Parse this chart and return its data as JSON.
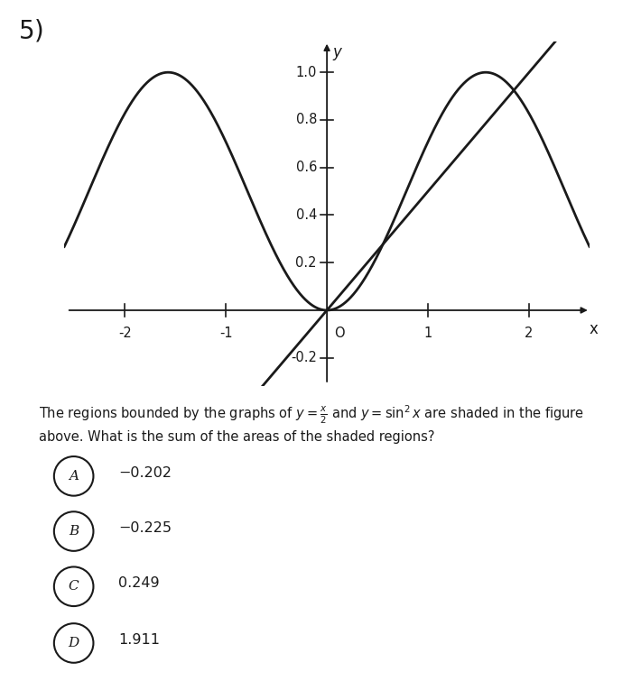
{
  "xmin": -2.6,
  "xmax": 2.6,
  "ymin": -0.32,
  "ymax": 1.13,
  "xticks": [
    -2,
    -1,
    1,
    2
  ],
  "yticks": [
    -0.2,
    0.2,
    0.4,
    0.6,
    0.8,
    1.0
  ],
  "xlabel": "x",
  "ylabel": "y",
  "line_color": "#1a1a1a",
  "line_width": 2.0,
  "background_color": "#ffffff",
  "choices": [
    {
      "label": "A",
      "value": "−0.202"
    },
    {
      "label": "B",
      "value": "−0.225"
    },
    {
      "label": "C",
      "value": "0.249"
    },
    {
      "label": "D",
      "value": "1.911"
    }
  ],
  "fig_width": 7.1,
  "fig_height": 7.65
}
